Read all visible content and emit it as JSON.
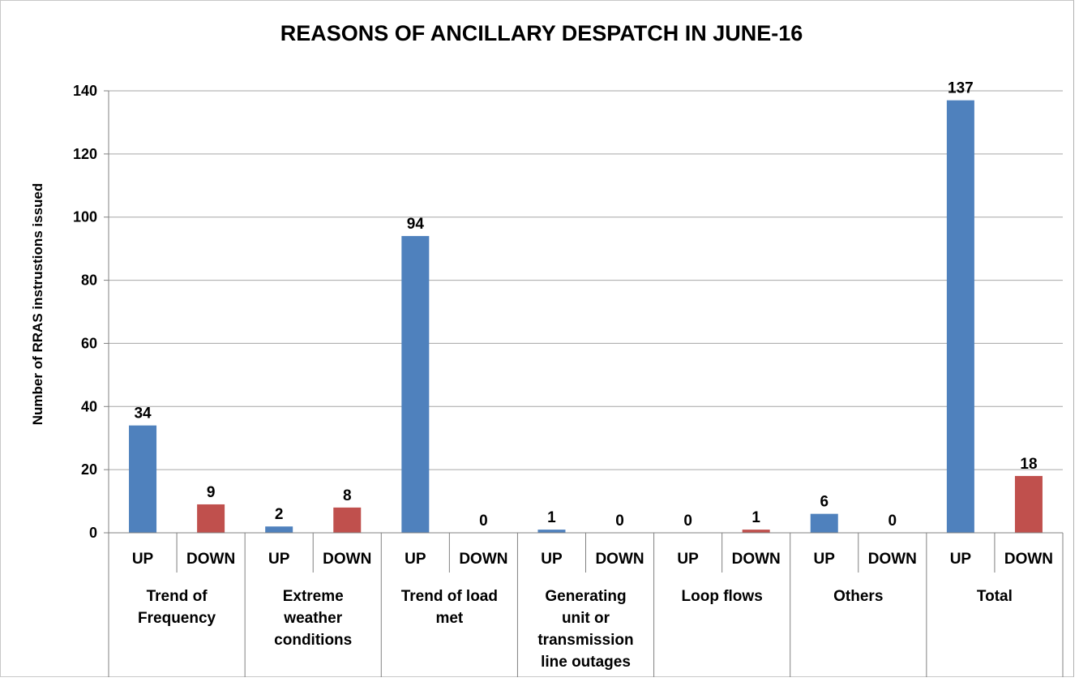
{
  "chart_data": {
    "type": "bar",
    "title": "REASONS OF ANCILLARY DESPATCH IN JUNE-16",
    "ylabel": "Number of RRAS instrustions issued",
    "xlabel": "",
    "ylim": [
      0,
      140
    ],
    "yticks": [
      0,
      20,
      40,
      60,
      80,
      100,
      120,
      140
    ],
    "grid": true,
    "legend": "none",
    "groups": [
      {
        "label_lines": [
          "Trend of",
          "Frequency"
        ]
      },
      {
        "label_lines": [
          "Extreme",
          "weather",
          "conditions"
        ]
      },
      {
        "label_lines": [
          "Trend of load",
          "met"
        ]
      },
      {
        "label_lines": [
          "Generating",
          "unit or",
          "transmission",
          "line outages"
        ]
      },
      {
        "label_lines": [
          "Loop flows"
        ]
      },
      {
        "label_lines": [
          "Others"
        ]
      },
      {
        "label_lines": [
          "Total"
        ]
      }
    ],
    "sub_categories": [
      "UP",
      "DOWN"
    ],
    "values": [
      [
        34,
        9
      ],
      [
        2,
        8
      ],
      [
        94,
        0
      ],
      [
        1,
        0
      ],
      [
        0,
        1
      ],
      [
        6,
        0
      ],
      [
        137,
        18
      ]
    ],
    "colors": {
      "UP": "#4f81bd",
      "DOWN": "#c0504d"
    }
  }
}
